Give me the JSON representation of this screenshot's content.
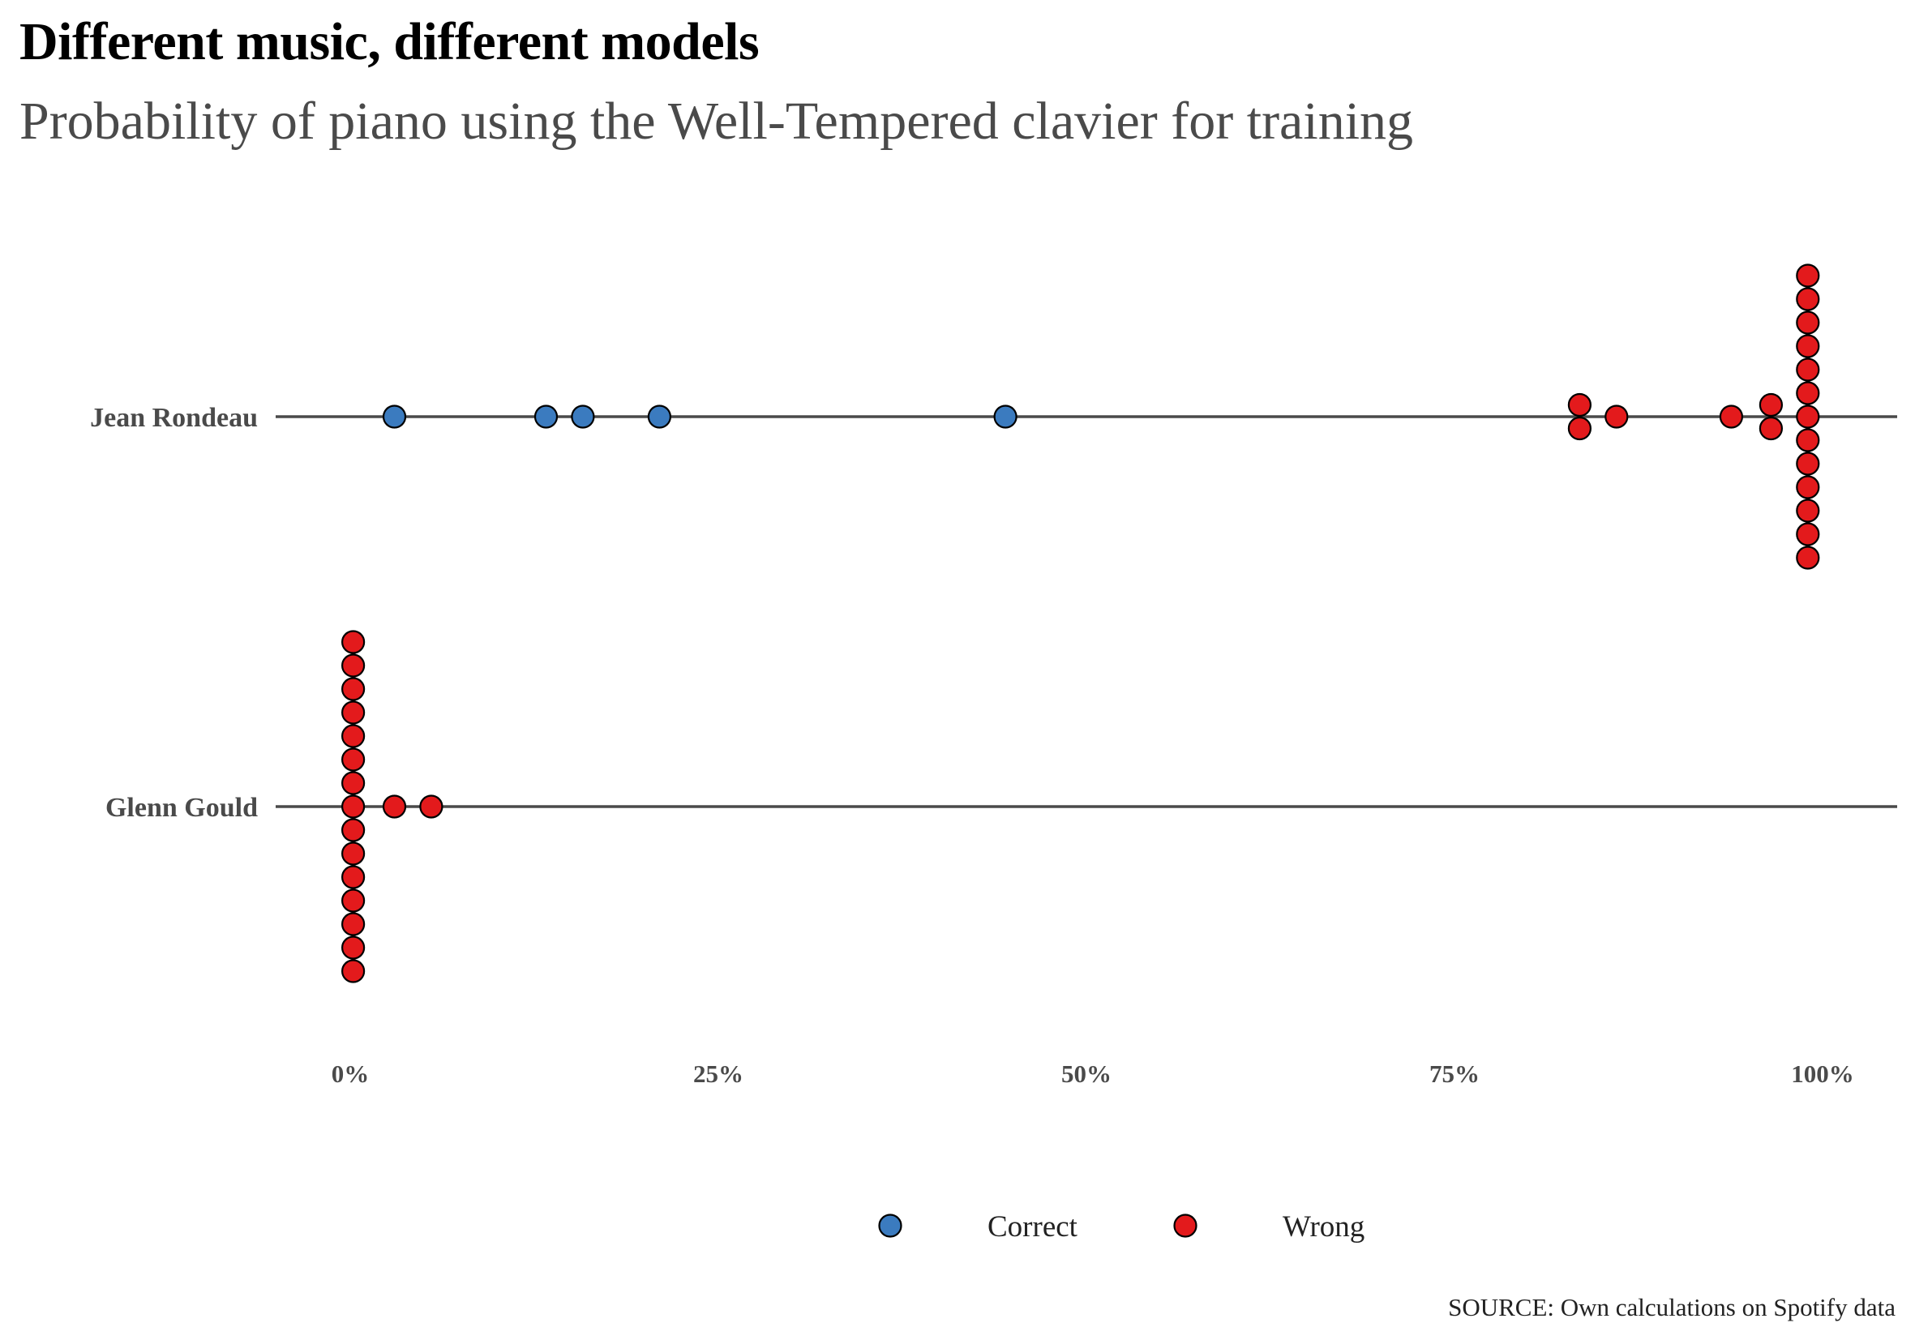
{
  "chart_data": {
    "type": "scatter",
    "title": "Different music, different models",
    "subtitle": "Probability of piano using the Well-Tempered clavier for training",
    "source": "SOURCE: Own calculations on Spotify data",
    "xlim": [
      0,
      1
    ],
    "x_ticks": [
      0,
      0.25,
      0.5,
      0.75,
      1.0
    ],
    "x_tick_labels": [
      "0%",
      "25%",
      "50%",
      "75%",
      "100%"
    ],
    "categories": [
      "Jean Rondeau",
      "Glenn Gould"
    ],
    "legend": {
      "placement": "bottom",
      "entries": [
        "Correct",
        "Wrong"
      ]
    },
    "colors": {
      "Correct": "#3b7bbf",
      "Wrong": "#e31a1c",
      "outline": "#000000",
      "axis_line": "#4a4a4a"
    },
    "series": [
      {
        "name": "Correct",
        "points": [
          {
            "category": "Jean Rondeau",
            "x": 0.03
          },
          {
            "category": "Jean Rondeau",
            "x": 0.133
          },
          {
            "category": "Jean Rondeau",
            "x": 0.158
          },
          {
            "category": "Jean Rondeau",
            "x": 0.21
          },
          {
            "category": "Jean Rondeau",
            "x": 0.445
          }
        ]
      },
      {
        "name": "Wrong",
        "points": [
          {
            "category": "Jean Rondeau",
            "x": 0.835
          },
          {
            "category": "Jean Rondeau",
            "x": 0.835
          },
          {
            "category": "Jean Rondeau",
            "x": 0.86
          },
          {
            "category": "Jean Rondeau",
            "x": 0.938
          },
          {
            "category": "Jean Rondeau",
            "x": 0.965
          },
          {
            "category": "Jean Rondeau",
            "x": 0.965
          },
          {
            "category": "Jean Rondeau",
            "x": 0.99
          },
          {
            "category": "Jean Rondeau",
            "x": 0.99
          },
          {
            "category": "Jean Rondeau",
            "x": 0.99
          },
          {
            "category": "Jean Rondeau",
            "x": 0.99
          },
          {
            "category": "Jean Rondeau",
            "x": 0.99
          },
          {
            "category": "Jean Rondeau",
            "x": 0.99
          },
          {
            "category": "Jean Rondeau",
            "x": 0.99
          },
          {
            "category": "Jean Rondeau",
            "x": 0.99
          },
          {
            "category": "Jean Rondeau",
            "x": 0.99
          },
          {
            "category": "Jean Rondeau",
            "x": 0.99
          },
          {
            "category": "Jean Rondeau",
            "x": 0.99
          },
          {
            "category": "Jean Rondeau",
            "x": 0.99
          },
          {
            "category": "Jean Rondeau",
            "x": 0.99
          },
          {
            "category": "Glenn Gould",
            "x": 0.002
          },
          {
            "category": "Glenn Gould",
            "x": 0.002
          },
          {
            "category": "Glenn Gould",
            "x": 0.002
          },
          {
            "category": "Glenn Gould",
            "x": 0.002
          },
          {
            "category": "Glenn Gould",
            "x": 0.002
          },
          {
            "category": "Glenn Gould",
            "x": 0.002
          },
          {
            "category": "Glenn Gould",
            "x": 0.002
          },
          {
            "category": "Glenn Gould",
            "x": 0.002
          },
          {
            "category": "Glenn Gould",
            "x": 0.002
          },
          {
            "category": "Glenn Gould",
            "x": 0.002
          },
          {
            "category": "Glenn Gould",
            "x": 0.002
          },
          {
            "category": "Glenn Gould",
            "x": 0.002
          },
          {
            "category": "Glenn Gould",
            "x": 0.002
          },
          {
            "category": "Glenn Gould",
            "x": 0.002
          },
          {
            "category": "Glenn Gould",
            "x": 0.002
          },
          {
            "category": "Glenn Gould",
            "x": 0.03
          },
          {
            "category": "Glenn Gould",
            "x": 0.055
          }
        ]
      }
    ]
  }
}
